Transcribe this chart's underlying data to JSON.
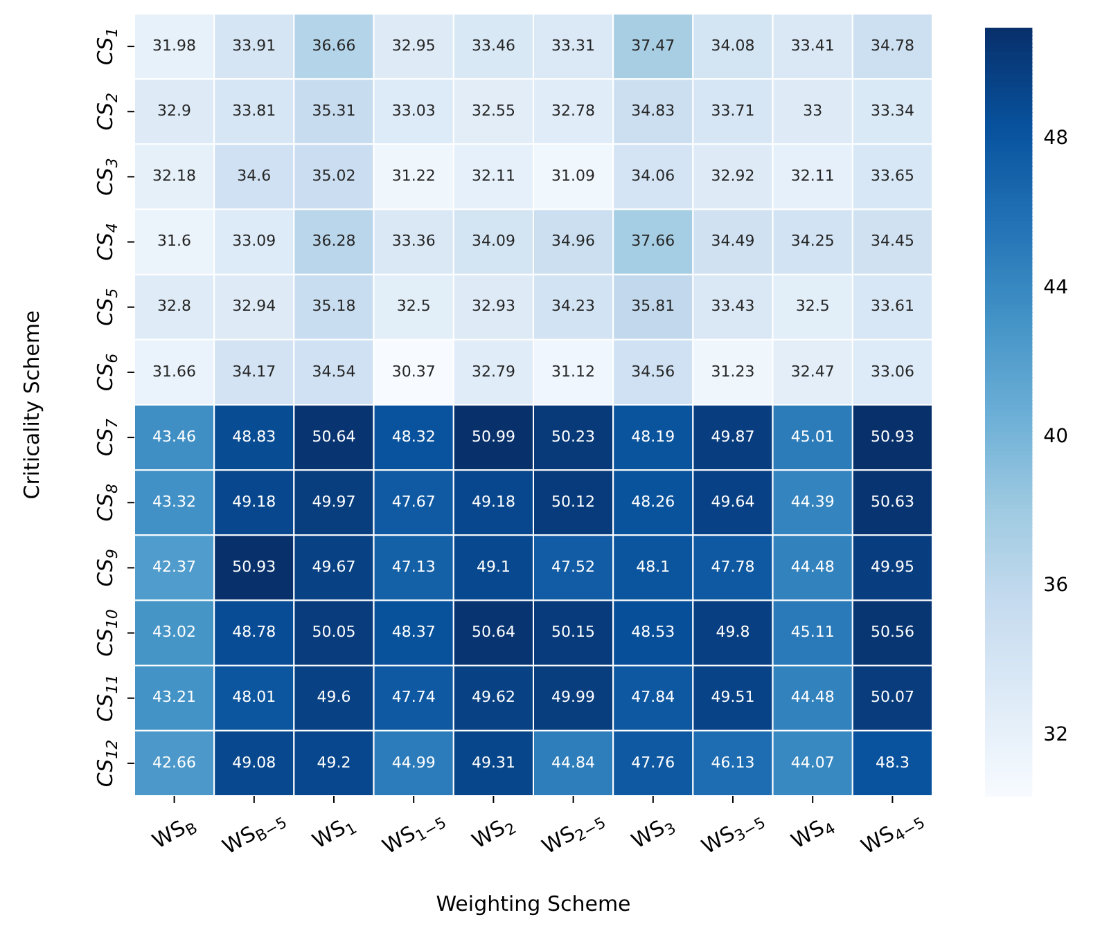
{
  "chart_data": {
    "type": "heatmap",
    "xlabel": "Weighting Scheme",
    "ylabel": "Criticality Scheme",
    "categories": [
      "WS$_{B}$",
      "WS$_{B−5}$",
      "WS$_{1}$",
      "WS$_{1−5}$",
      "WS$_{2}$",
      "WS$_{2−5}$",
      "WS$_{3}$",
      "WS$_{3−5}$",
      "WS$_{4}$",
      "WS$_{4−5}$"
    ],
    "y_categories": [
      "CS$_{1}$",
      "CS$_{2}$",
      "CS$_{3}$",
      "CS$_{4}$",
      "CS$_{5}$",
      "CS$_{6}$",
      "CS$_{7}$",
      "CS$_{8}$",
      "CS$_{9}$",
      "CS$_{10}$",
      "CS$_{11}$",
      "CS$_{12}$"
    ],
    "cells": [
      [
        31.98,
        33.91,
        36.66,
        32.95,
        33.46,
        33.31,
        37.47,
        34.08,
        33.41,
        34.78
      ],
      [
        32.9,
        33.81,
        35.31,
        33.03,
        32.55,
        32.78,
        34.83,
        33.71,
        33,
        33.34
      ],
      [
        32.18,
        34.6,
        35.02,
        31.22,
        32.11,
        31.09,
        34.06,
        32.92,
        32.11,
        33.65
      ],
      [
        31.6,
        33.09,
        36.28,
        33.36,
        34.09,
        34.96,
        37.66,
        34.49,
        34.25,
        34.45
      ],
      [
        32.8,
        32.94,
        35.18,
        32.5,
        32.93,
        34.23,
        35.81,
        33.43,
        32.5,
        33.61
      ],
      [
        31.66,
        34.17,
        34.54,
        30.37,
        32.79,
        31.12,
        34.56,
        31.23,
        32.47,
        33.06
      ],
      [
        43.46,
        48.83,
        50.64,
        48.32,
        50.99,
        50.23,
        48.19,
        49.87,
        45.01,
        50.93
      ],
      [
        43.32,
        49.18,
        49.97,
        47.67,
        49.18,
        50.12,
        48.26,
        49.64,
        44.39,
        50.63
      ],
      [
        42.37,
        50.93,
        49.67,
        47.13,
        49.1,
        47.52,
        48.1,
        47.78,
        44.48,
        49.95
      ],
      [
        43.02,
        48.78,
        50.05,
        48.37,
        50.64,
        50.15,
        48.53,
        49.8,
        45.11,
        50.56
      ],
      [
        43.21,
        48.01,
        49.6,
        47.74,
        49.62,
        49.99,
        47.84,
        49.51,
        44.48,
        50.07
      ],
      [
        42.66,
        49.08,
        49.2,
        44.99,
        49.31,
        44.84,
        47.76,
        46.13,
        44.07,
        48.3
      ]
    ],
    "data_labels": true,
    "clim": [
      30.37,
      50.99
    ],
    "cticks": [
      32,
      36,
      40,
      44,
      48
    ]
  }
}
